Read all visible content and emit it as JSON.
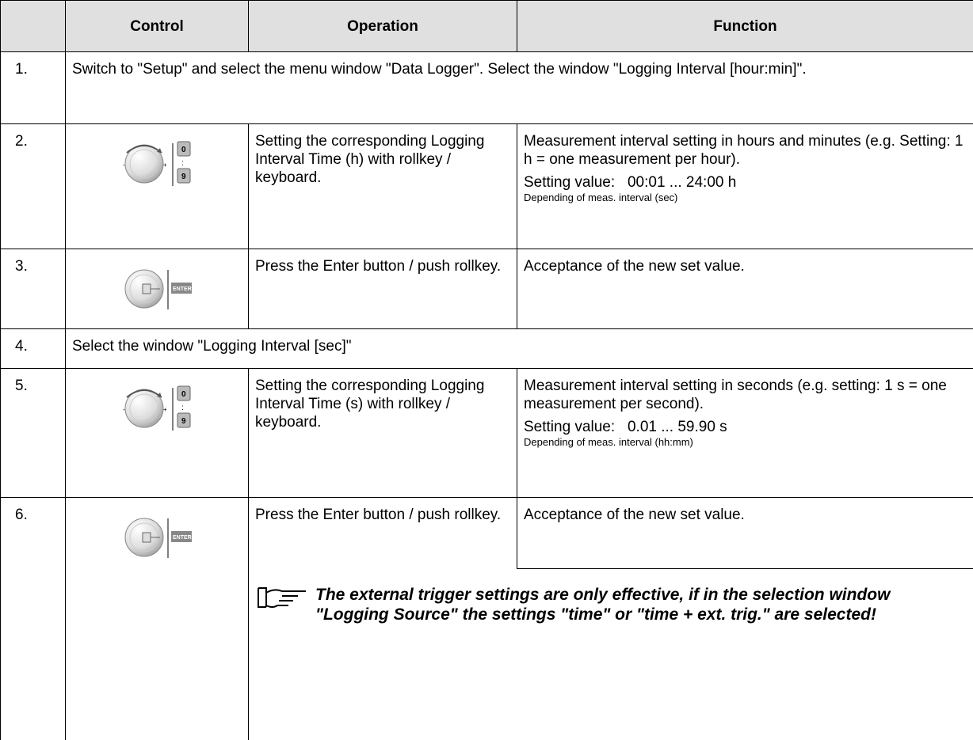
{
  "table": {
    "header": [
      "",
      "Control",
      "Operation",
      "Function"
    ],
    "rows": [
      {
        "number": "1.",
        "text": "Switch to \"Setup\" and select the menu window \"Data Logger\". Select the window \"Logging Interval [hour:min]\"."
      },
      {
        "number": "2.",
        "operation": "Setting the corresponding Logging Interval Time (h) with rollkey / keyboard.",
        "function": "Measurement interval setting in hours and minutes (e.g. Setting: 1 h = one measurement per hour).",
        "setting_label": "Setting value:",
        "setting_value": "00:01 ... 24:00 h",
        "setting_note": "Depending of meas. interval (sec)"
      },
      {
        "number": "3.",
        "operation": "Press the Enter button / push rollkey.",
        "function": "Acceptance of the new set value."
      },
      {
        "number": "4.",
        "text": "Select the window \"Logging Interval [sec]\""
      },
      {
        "number": "5.",
        "operation": "Setting the corresponding Logging Interval Time (s) with rollkey / keyboard.",
        "function": "Measurement interval setting in seconds (e.g. setting: 1 s = one measurement per second).",
        "setting_label": "Setting value:",
        "setting_value": "0.01 ... 59.90 s",
        "setting_note": "Depending of meas. interval (hh:mm)"
      },
      {
        "number": "6.",
        "operation": "Press the Enter button / push rollkey.",
        "function": "Acceptance of the new set value."
      }
    ],
    "note": "The external trigger settings are only effective, if in the selection window \"Logging Source\" the settings \"time\" or \"time + ext. trig.\" are selected!"
  }
}
